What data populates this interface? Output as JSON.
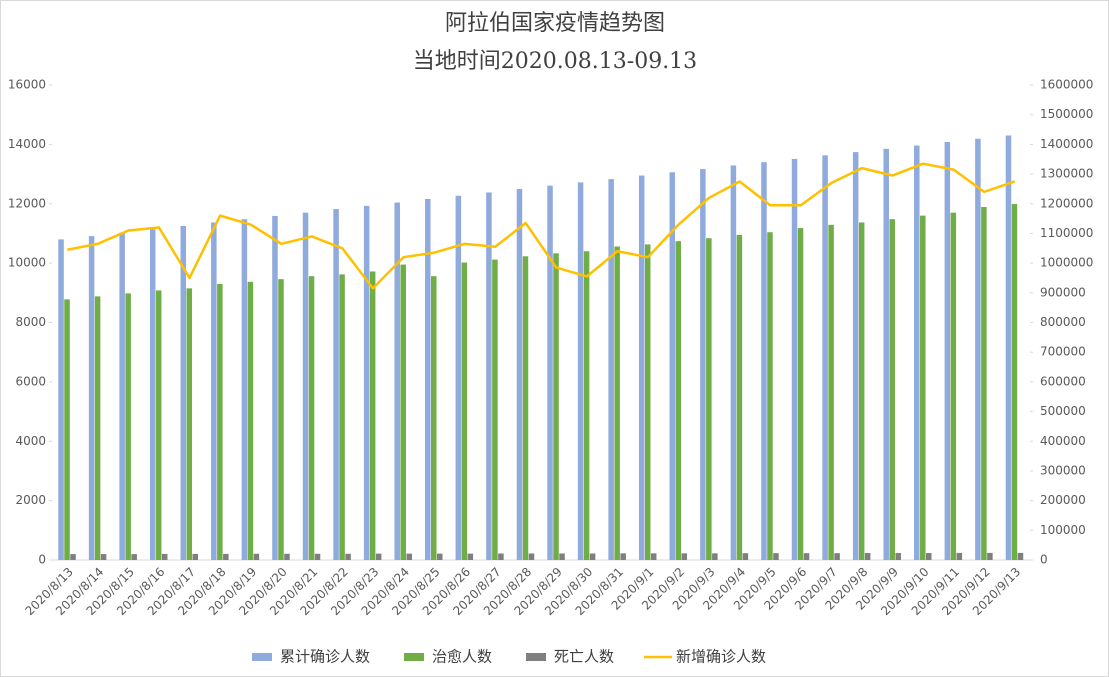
{
  "chart_data": {
    "type": "bar",
    "title": "阿拉伯国家疫情趋势图",
    "subtitle": "当地时间2020.08.13-09.13",
    "categories": [
      "2020/8/13",
      "2020/8/14",
      "2020/8/15",
      "2020/8/16",
      "2020/8/17",
      "2020/8/18",
      "2020/8/19",
      "2020/8/20",
      "2020/8/21",
      "2020/8/22",
      "2020/8/23",
      "2020/8/24",
      "2020/8/25",
      "2020/8/26",
      "2020/8/27",
      "2020/8/28",
      "2020/8/29",
      "2020/8/30",
      "2020/8/31",
      "2020/9/1",
      "2020/9/2",
      "2020/9/3",
      "2020/9/4",
      "2020/9/5",
      "2020/9/6",
      "2020/9/7",
      "2020/9/8",
      "2020/9/9",
      "2020/9/10",
      "2020/9/11",
      "2020/9/12",
      "2020/9/13"
    ],
    "series": [
      {
        "name": "累计确诊人数",
        "type": "bar",
        "color": "#8faadc",
        "values": [
          10800,
          10910,
          11030,
          11140,
          11250,
          11370,
          11480,
          11590,
          11700,
          11820,
          11930,
          12040,
          12160,
          12270,
          12380,
          12500,
          12610,
          12720,
          12830,
          12950,
          13060,
          13170,
          13290,
          13400,
          13510,
          13630,
          13740,
          13850,
          13960,
          14080,
          14190,
          14300
        ]
      },
      {
        "name": "治愈人数",
        "type": "bar",
        "color": "#70ad47",
        "values": [
          8780,
          8880,
          8980,
          9080,
          9150,
          9300,
          9370,
          9460,
          9560,
          9620,
          9720,
          9950,
          9560,
          10020,
          10120,
          10230,
          10330,
          10400,
          10560,
          10630,
          10740,
          10840,
          10950,
          11040,
          11180,
          11290,
          11370,
          11480,
          11600,
          11700,
          11890,
          11990
        ]
      },
      {
        "name": "死亡人数",
        "type": "bar",
        "color": "#7f7f7f",
        "values": [
          200,
          200,
          200,
          205,
          205,
          205,
          210,
          210,
          210,
          210,
          215,
          215,
          215,
          215,
          220,
          220,
          220,
          220,
          225,
          225,
          225,
          225,
          230,
          230,
          230,
          230,
          235,
          235,
          235,
          240,
          240,
          240
        ]
      },
      {
        "name": "新增确诊人数",
        "type": "line",
        "axis": "y2",
        "color": "#ffc000",
        "values": [
          1045000,
          1065000,
          1110000,
          1120000,
          950000,
          1160000,
          1130000,
          1065000,
          1090000,
          1050000,
          915000,
          1020000,
          1035000,
          1065000,
          1055000,
          1135000,
          985000,
          955000,
          1040000,
          1020000,
          1130000,
          1220000,
          1275000,
          1195000,
          1195000,
          1270000,
          1320000,
          1295000,
          1335000,
          1315000,
          1240000,
          1275000
        ]
      }
    ],
    "ylim": [
      0,
      16000
    ],
    "yticks": [
      0,
      2000,
      4000,
      6000,
      8000,
      10000,
      12000,
      14000,
      16000
    ],
    "y2lim": [
      0,
      1600000
    ],
    "y2ticks": [
      0,
      100000,
      200000,
      300000,
      400000,
      500000,
      600000,
      700000,
      800000,
      900000,
      1000000,
      1100000,
      1200000,
      1300000,
      1400000,
      1500000,
      1600000
    ],
    "grid": false,
    "legend": "bottom"
  }
}
